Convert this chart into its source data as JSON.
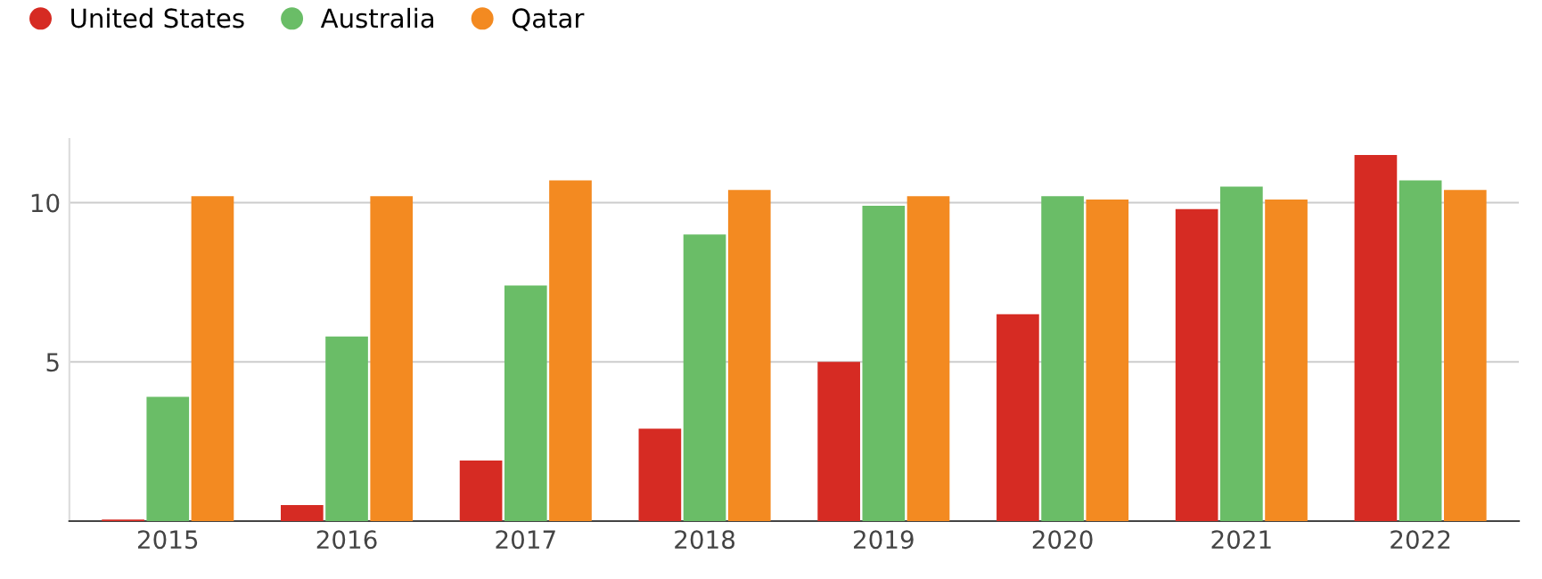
{
  "chart_data": {
    "type": "bar",
    "categories": [
      "2015",
      "2016",
      "2017",
      "2018",
      "2019",
      "2020",
      "2021",
      "2022"
    ],
    "series": [
      {
        "name": "United States",
        "color": "#d62b23",
        "values": [
          0.05,
          0.5,
          1.9,
          2.9,
          5.0,
          6.5,
          9.8,
          11.5
        ]
      },
      {
        "name": "Australia",
        "color": "#6abd67",
        "values": [
          3.9,
          5.8,
          7.4,
          9.0,
          9.9,
          10.2,
          10.5,
          10.7
        ]
      },
      {
        "name": "Qatar",
        "color": "#f38a21",
        "values": [
          10.2,
          10.2,
          10.7,
          10.4,
          10.2,
          10.1,
          10.1,
          10.4
        ]
      }
    ],
    "ylim": [
      0,
      12
    ],
    "yticks": [
      5,
      10
    ],
    "grid": "y",
    "legend": "top left"
  }
}
